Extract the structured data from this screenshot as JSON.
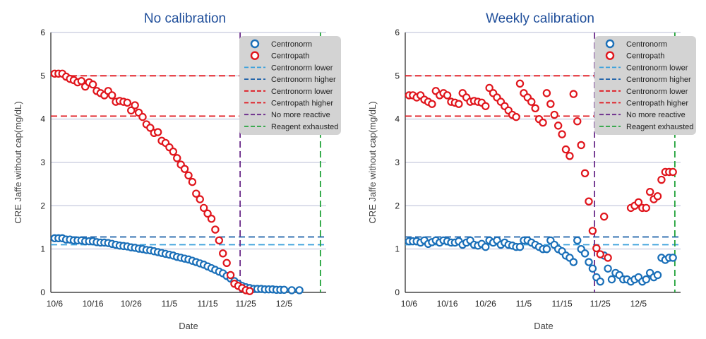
{
  "colors": {
    "centronorm": "#1a6fb8",
    "centropath": "#e0151c",
    "centronorm_lower": "#3aa0dc",
    "centronorm_higher": "#1a5fa8",
    "centronorm_lower_red": "#e0151c",
    "centropath_higher": "#e0151c",
    "no_more_reactive": "#6a2a8a",
    "reagent_exhausted": "#22a33a",
    "gridline": "#b8bdd4",
    "legend_bg": "#d3d3d3",
    "title": "#1f4e9a"
  },
  "chart_data": [
    {
      "type": "scatter",
      "title": "No calibration",
      "xlabel": "Date",
      "ylabel": "CRE Jaffe without cap(mg/dL)",
      "x_unit": "days from 10/6",
      "x_ticks": [
        {
          "label": "10/6",
          "value": 0
        },
        {
          "label": "10/16",
          "value": 10
        },
        {
          "label": "10/26",
          "value": 20
        },
        {
          "label": "11/5",
          "value": 30
        },
        {
          "label": "11/15",
          "value": 40
        },
        {
          "label": "11/25",
          "value": 50
        },
        {
          "label": "12/5",
          "value": 60
        }
      ],
      "xlim": [
        -1,
        71
      ],
      "ylim": [
        0,
        6
      ],
      "y_ticks": [
        0,
        1,
        2,
        3,
        4,
        5,
        6
      ],
      "grid": "horizontal",
      "legend_position": "top-right",
      "legend": [
        {
          "label": "Centronorm",
          "kind": "circle",
          "color_key": "centronorm"
        },
        {
          "label": "Centropath",
          "kind": "circle",
          "color_key": "centropath"
        },
        {
          "label": "Centronorm lower",
          "kind": "dash",
          "color_key": "centronorm_lower"
        },
        {
          "label": "Centronorm higher",
          "kind": "dash",
          "color_key": "centronorm_higher"
        },
        {
          "label": "Centronorm lower",
          "kind": "dash",
          "color_key": "centronorm_lower_red"
        },
        {
          "label": "Centropath higher",
          "kind": "dash",
          "color_key": "centropath_higher"
        },
        {
          "label": "No more reactive",
          "kind": "dash",
          "color_key": "no_more_reactive"
        },
        {
          "label": "Reagent exhausted",
          "kind": "dash",
          "color_key": "reagent_exhausted"
        }
      ],
      "reference_lines": [
        {
          "axis": "y",
          "value": 1.1,
          "color_key": "centronorm_lower"
        },
        {
          "axis": "y",
          "value": 1.28,
          "color_key": "centronorm_higher"
        },
        {
          "axis": "y",
          "value": 4.07,
          "color_key": "centronorm_lower_red"
        },
        {
          "axis": "y",
          "value": 5.0,
          "color_key": "centropath_higher"
        },
        {
          "axis": "x",
          "value": 48.5,
          "color_key": "no_more_reactive"
        },
        {
          "axis": "x",
          "value": 69.5,
          "color_key": "reagent_exhausted"
        }
      ],
      "series": [
        {
          "name": "Centronorm",
          "color_key": "centronorm",
          "x": [
            0,
            1,
            2,
            3,
            4,
            5,
            6,
            7,
            8,
            9,
            10,
            11,
            12,
            13,
            14,
            15,
            16,
            17,
            18,
            19,
            20,
            21,
            22,
            23,
            24,
            25,
            26,
            27,
            28,
            29,
            30,
            31,
            32,
            33,
            34,
            35,
            36,
            37,
            38,
            39,
            40,
            41,
            42,
            43,
            44,
            45,
            46,
            47,
            48,
            49,
            50,
            51,
            52,
            53,
            54,
            55,
            56,
            57,
            58,
            59,
            60,
            62,
            64
          ],
          "y": [
            1.25,
            1.25,
            1.25,
            1.22,
            1.22,
            1.2,
            1.2,
            1.2,
            1.18,
            1.18,
            1.18,
            1.16,
            1.15,
            1.15,
            1.14,
            1.12,
            1.1,
            1.08,
            1.07,
            1.06,
            1.04,
            1.03,
            1.01,
            1.0,
            0.98,
            0.97,
            0.95,
            0.93,
            0.91,
            0.89,
            0.87,
            0.85,
            0.82,
            0.8,
            0.78,
            0.76,
            0.73,
            0.7,
            0.67,
            0.64,
            0.6,
            0.56,
            0.52,
            0.48,
            0.44,
            0.38,
            0.32,
            0.26,
            0.2,
            0.15,
            0.12,
            0.1,
            0.08,
            0.08,
            0.08,
            0.07,
            0.07,
            0.07,
            0.06,
            0.06,
            0.06,
            0.05,
            0.05
          ]
        },
        {
          "name": "Centropath",
          "color_key": "centropath",
          "x": [
            0,
            1,
            2,
            3,
            4,
            5,
            6,
            7,
            8,
            9,
            10,
            11,
            12,
            13,
            14,
            15,
            16,
            17,
            18,
            19,
            20,
            21,
            22,
            23,
            24,
            25,
            26,
            27,
            28,
            29,
            30,
            31,
            32,
            33,
            34,
            35,
            36,
            37,
            38,
            39,
            40,
            41,
            42,
            43,
            44,
            45,
            46,
            47,
            48,
            49,
            50,
            51
          ],
          "y": [
            5.05,
            5.05,
            5.05,
            4.98,
            4.93,
            4.9,
            4.85,
            4.88,
            4.75,
            4.85,
            4.8,
            4.65,
            4.6,
            4.55,
            4.65,
            4.55,
            4.4,
            4.42,
            4.4,
            4.38,
            4.2,
            4.32,
            4.15,
            4.05,
            3.88,
            3.8,
            3.68,
            3.7,
            3.5,
            3.45,
            3.35,
            3.25,
            3.1,
            2.95,
            2.85,
            2.7,
            2.55,
            2.28,
            2.15,
            1.95,
            1.82,
            1.7,
            1.45,
            1.2,
            0.9,
            0.68,
            0.4,
            0.2,
            0.15,
            0.1,
            0.05,
            0.03
          ]
        }
      ]
    },
    {
      "type": "scatter",
      "title": "Weekly calibration",
      "xlabel": "Date",
      "ylabel": "CRE Jaffe without cap(mg/dL)",
      "x_unit": "days from 10/6",
      "x_ticks": [
        {
          "label": "10/6",
          "value": 0
        },
        {
          "label": "10/16",
          "value": 10
        },
        {
          "label": "10/26",
          "value": 20
        },
        {
          "label": "11/5",
          "value": 30
        },
        {
          "label": "11/15",
          "value": 40
        },
        {
          "label": "11/25",
          "value": 50
        },
        {
          "label": "12/5",
          "value": 60
        }
      ],
      "xlim": [
        -1,
        71
      ],
      "ylim": [
        0,
        6
      ],
      "y_ticks": [
        0,
        1,
        2,
        3,
        4,
        5,
        6
      ],
      "grid": "horizontal",
      "legend_position": "top-right",
      "legend": [
        {
          "label": "Centronorm",
          "kind": "circle",
          "color_key": "centronorm"
        },
        {
          "label": "Centropath",
          "kind": "circle",
          "color_key": "centropath"
        },
        {
          "label": "Centronorm lower",
          "kind": "dash",
          "color_key": "centronorm_lower"
        },
        {
          "label": "Centronorm higher",
          "kind": "dash",
          "color_key": "centronorm_higher"
        },
        {
          "label": "Centronorm lower",
          "kind": "dash",
          "color_key": "centronorm_lower_red"
        },
        {
          "label": "Centropath higher",
          "kind": "dash",
          "color_key": "centropath_higher"
        },
        {
          "label": "No more reactive",
          "kind": "dash",
          "color_key": "no_more_reactive"
        },
        {
          "label": "Reagent exhausted",
          "kind": "dash",
          "color_key": "reagent_exhausted"
        }
      ],
      "reference_lines": [
        {
          "axis": "y",
          "value": 1.1,
          "color_key": "centronorm_lower"
        },
        {
          "axis": "y",
          "value": 1.28,
          "color_key": "centronorm_higher"
        },
        {
          "axis": "y",
          "value": 4.07,
          "color_key": "centronorm_lower_red"
        },
        {
          "axis": "y",
          "value": 5.0,
          "color_key": "centropath_higher"
        },
        {
          "axis": "x",
          "value": 48.5,
          "color_key": "no_more_reactive"
        },
        {
          "axis": "x",
          "value": 69.5,
          "color_key": "reagent_exhausted"
        }
      ],
      "series": [
        {
          "name": "Centronorm",
          "color_key": "centronorm",
          "x": [
            0,
            1,
            2,
            3,
            4,
            5,
            6,
            7,
            8,
            9,
            10,
            11,
            12,
            13,
            14,
            15,
            16,
            17,
            18,
            19,
            20,
            21,
            22,
            23,
            24,
            25,
            26,
            27,
            28,
            29,
            30,
            31,
            32,
            33,
            34,
            35,
            36,
            37,
            38,
            39,
            40,
            41,
            42,
            43,
            44,
            45,
            46,
            47,
            48,
            49,
            50,
            51,
            52,
            53,
            54,
            55,
            56,
            57,
            58,
            59,
            60,
            61,
            62,
            63,
            64,
            65,
            66,
            67,
            68,
            69
          ],
          "y": [
            1.18,
            1.18,
            1.18,
            1.15,
            1.2,
            1.12,
            1.16,
            1.2,
            1.15,
            1.2,
            1.18,
            1.15,
            1.15,
            1.18,
            1.1,
            1.15,
            1.2,
            1.1,
            1.08,
            1.12,
            1.05,
            1.2,
            1.15,
            1.2,
            1.1,
            1.15,
            1.1,
            1.08,
            1.05,
            1.05,
            1.2,
            1.2,
            1.15,
            1.1,
            1.05,
            1.0,
            1.0,
            1.2,
            1.1,
            1.0,
            0.95,
            0.85,
            0.8,
            0.7,
            1.2,
            1.0,
            0.9,
            0.7,
            0.55,
            0.35,
            0.25,
            0.85,
            0.55,
            0.3,
            0.45,
            0.4,
            0.3,
            0.3,
            0.25,
            0.3,
            0.35,
            0.25,
            0.3,
            0.45,
            0.35,
            0.4,
            0.8,
            0.75,
            0.8,
            0.8
          ]
        },
        {
          "name": "Centropath",
          "color_key": "centropath",
          "x": [
            0,
            1,
            2,
            3,
            4,
            5,
            6,
            7,
            8,
            9,
            10,
            11,
            12,
            13,
            14,
            15,
            16,
            17,
            18,
            19,
            20,
            21,
            22,
            23,
            24,
            25,
            26,
            27,
            28,
            29,
            30,
            31,
            32,
            33,
            34,
            35,
            36,
            37,
            38,
            39,
            40,
            41,
            42,
            43,
            44,
            45,
            46,
            47,
            48,
            49,
            50,
            51,
            52,
            58,
            59,
            60,
            61,
            62,
            63,
            64,
            65,
            66,
            67,
            68,
            69
          ],
          "y": [
            4.55,
            4.55,
            4.5,
            4.55,
            4.45,
            4.4,
            4.35,
            4.65,
            4.55,
            4.6,
            4.55,
            4.4,
            4.38,
            4.35,
            4.6,
            4.5,
            4.4,
            4.42,
            4.4,
            4.38,
            4.3,
            4.72,
            4.6,
            4.5,
            4.4,
            4.3,
            4.2,
            4.1,
            4.05,
            4.82,
            4.6,
            4.5,
            4.4,
            4.25,
            4.0,
            3.92,
            4.6,
            4.35,
            4.1,
            3.85,
            3.65,
            3.3,
            3.15,
            4.58,
            3.95,
            3.4,
            2.75,
            2.1,
            1.42,
            1.02,
            0.88,
            1.75,
            0.8,
            1.95,
            2.0,
            2.08,
            1.95,
            1.95,
            2.32,
            2.15,
            2.22,
            2.6,
            2.78,
            2.78,
            2.78
          ]
        }
      ]
    }
  ]
}
